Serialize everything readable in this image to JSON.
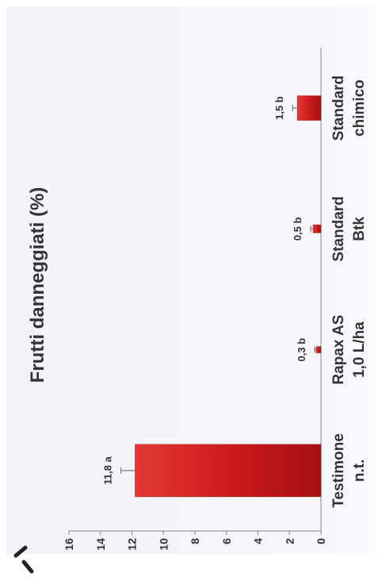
{
  "chart_data": {
    "type": "bar",
    "orientation": "rotated-90",
    "title": "Frutti danneggiati (%)",
    "categories": [
      [
        "Testimone",
        "n.t."
      ],
      [
        "Rapax AS",
        "1,0 L/ha"
      ],
      [
        "Standard",
        "Btk"
      ],
      [
        "Standard",
        "chimico"
      ]
    ],
    "values": [
      11.8,
      0.3,
      0.5,
      1.5
    ],
    "errors": [
      0.9,
      0.1,
      0.15,
      0.3
    ],
    "data_labels": [
      "11,8 a",
      "0,3 b",
      "0,5 b",
      "1,5 b"
    ],
    "ylim": [
      0,
      16
    ],
    "yticks": [
      "0",
      "2",
      "4",
      "6",
      "8",
      "10",
      "12",
      "14",
      "16"
    ],
    "grid": false,
    "bar_color": "#c8191b"
  }
}
